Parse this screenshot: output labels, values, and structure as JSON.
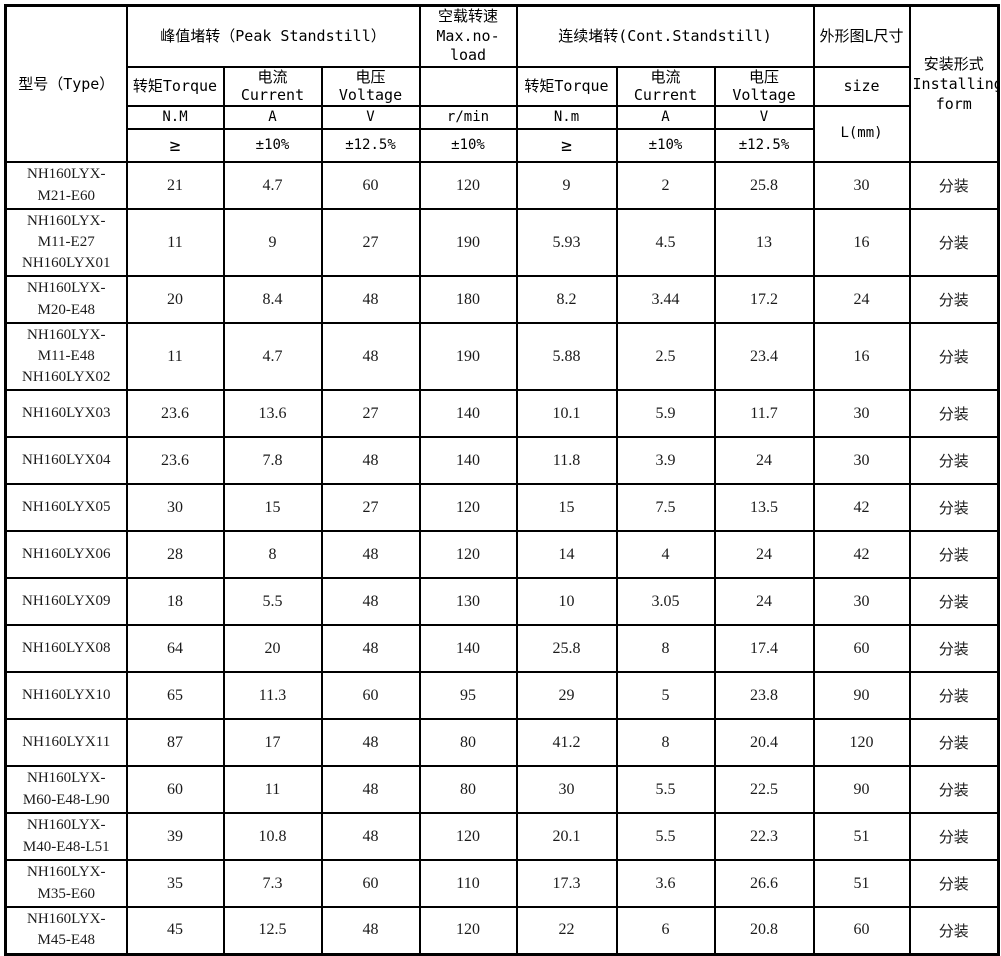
{
  "table": {
    "header": {
      "type_label": "型号（Type）",
      "peak_title": "峰值堵转（Peak Standstill）",
      "noload_line1": "空载转速",
      "noload_line2": "Max.no-load",
      "cont_title": "连续堵转(Cont.Standstill)",
      "size_title": "外形图L尺寸",
      "install_line1": "安装形式",
      "install_line2": "Installing",
      "install_line3": "form",
      "peak_torque_label": "转矩Torque",
      "peak_current_label": "电流Current",
      "peak_voltage_label": "电压Voltage",
      "cont_torque_label": "转矩Torque",
      "cont_current_label": "电流Current",
      "cont_voltage_label": "电压Voltage",
      "size_sub_label": "size",
      "peak_torque_unit": "N.M",
      "peak_current_unit": "A",
      "peak_voltage_unit": "V",
      "noload_unit": "r/min",
      "cont_torque_unit": "N.m",
      "cont_current_unit": "A",
      "cont_voltage_unit": "V",
      "size_unit": "L(mm)",
      "peak_torque_tol": "≥",
      "peak_current_tol": "±10%",
      "peak_voltage_tol": "±12.5%",
      "noload_tol": "±10%",
      "cont_torque_tol": "≥",
      "cont_current_tol": "±10%",
      "cont_voltage_tol": "±12.5%"
    },
    "rows": [
      {
        "model": [
          "NH160LYX-",
          "M21-E60"
        ],
        "values": [
          "21",
          "4.7",
          "60",
          "120",
          "9",
          "2",
          "25.8",
          "30"
        ],
        "install": "分装"
      },
      {
        "model": [
          "NH160LYX-",
          "M11-E27",
          "NH160LYX01"
        ],
        "values": [
          "11",
          "9",
          "27",
          "190",
          "5.93",
          "4.5",
          "13",
          "16"
        ],
        "install": "分装"
      },
      {
        "model": [
          "NH160LYX-",
          "M20-E48"
        ],
        "values": [
          "20",
          "8.4",
          "48",
          "180",
          "8.2",
          "3.44",
          "17.2",
          "24"
        ],
        "install": "分装"
      },
      {
        "model": [
          "NH160LYX-",
          "M11-E48",
          "NH160LYX02"
        ],
        "values": [
          "11",
          "4.7",
          "48",
          "190",
          "5.88",
          "2.5",
          "23.4",
          "16"
        ],
        "install": "分装"
      },
      {
        "model": [
          "NH160LYX03"
        ],
        "values": [
          "23.6",
          "13.6",
          "27",
          "140",
          "10.1",
          "5.9",
          "11.7",
          "30"
        ],
        "install": "分装"
      },
      {
        "model": [
          "NH160LYX04"
        ],
        "values": [
          "23.6",
          "7.8",
          "48",
          "140",
          "11.8",
          "3.9",
          "24",
          "30"
        ],
        "install": "分装"
      },
      {
        "model": [
          "NH160LYX05"
        ],
        "values": [
          "30",
          "15",
          "27",
          "120",
          "15",
          "7.5",
          "13.5",
          "42"
        ],
        "install": "分装"
      },
      {
        "model": [
          "NH160LYX06"
        ],
        "values": [
          "28",
          "8",
          "48",
          "120",
          "14",
          "4",
          "24",
          "42"
        ],
        "install": "分装"
      },
      {
        "model": [
          "NH160LYX09"
        ],
        "values": [
          "18",
          "5.5",
          "48",
          "130",
          "10",
          "3.05",
          "24",
          "30"
        ],
        "install": "分装"
      },
      {
        "model": [
          "NH160LYX08"
        ],
        "values": [
          "64",
          "20",
          "48",
          "140",
          "25.8",
          "8",
          "17.4",
          "60"
        ],
        "install": "分装"
      },
      {
        "model": [
          "NH160LYX10"
        ],
        "values": [
          "65",
          "11.3",
          "60",
          "95",
          "29",
          "5",
          "23.8",
          "90"
        ],
        "install": "分装"
      },
      {
        "model": [
          "NH160LYX11"
        ],
        "values": [
          "87",
          "17",
          "48",
          "80",
          "41.2",
          "8",
          "20.4",
          "120"
        ],
        "install": "分装"
      },
      {
        "model": [
          "NH160LYX-",
          "M60-E48-L90"
        ],
        "values": [
          "60",
          "11",
          "48",
          "80",
          "30",
          "5.5",
          "22.5",
          "90"
        ],
        "install": "分装"
      },
      {
        "model": [
          "NH160LYX-",
          "M40-E48-L51"
        ],
        "values": [
          "39",
          "10.8",
          "48",
          "120",
          "20.1",
          "5.5",
          "22.3",
          "51"
        ],
        "install": "分装"
      },
      {
        "model": [
          "NH160LYX-",
          "M35-E60"
        ],
        "values": [
          "35",
          "7.3",
          "60",
          "110",
          "17.3",
          "3.6",
          "26.6",
          "51"
        ],
        "install": "分装"
      },
      {
        "model": [
          "NH160LYX-",
          "M45-E48"
        ],
        "values": [
          "45",
          "12.5",
          "48",
          "120",
          "22",
          "6",
          "20.8",
          "60"
        ],
        "install": "分装"
      }
    ]
  }
}
